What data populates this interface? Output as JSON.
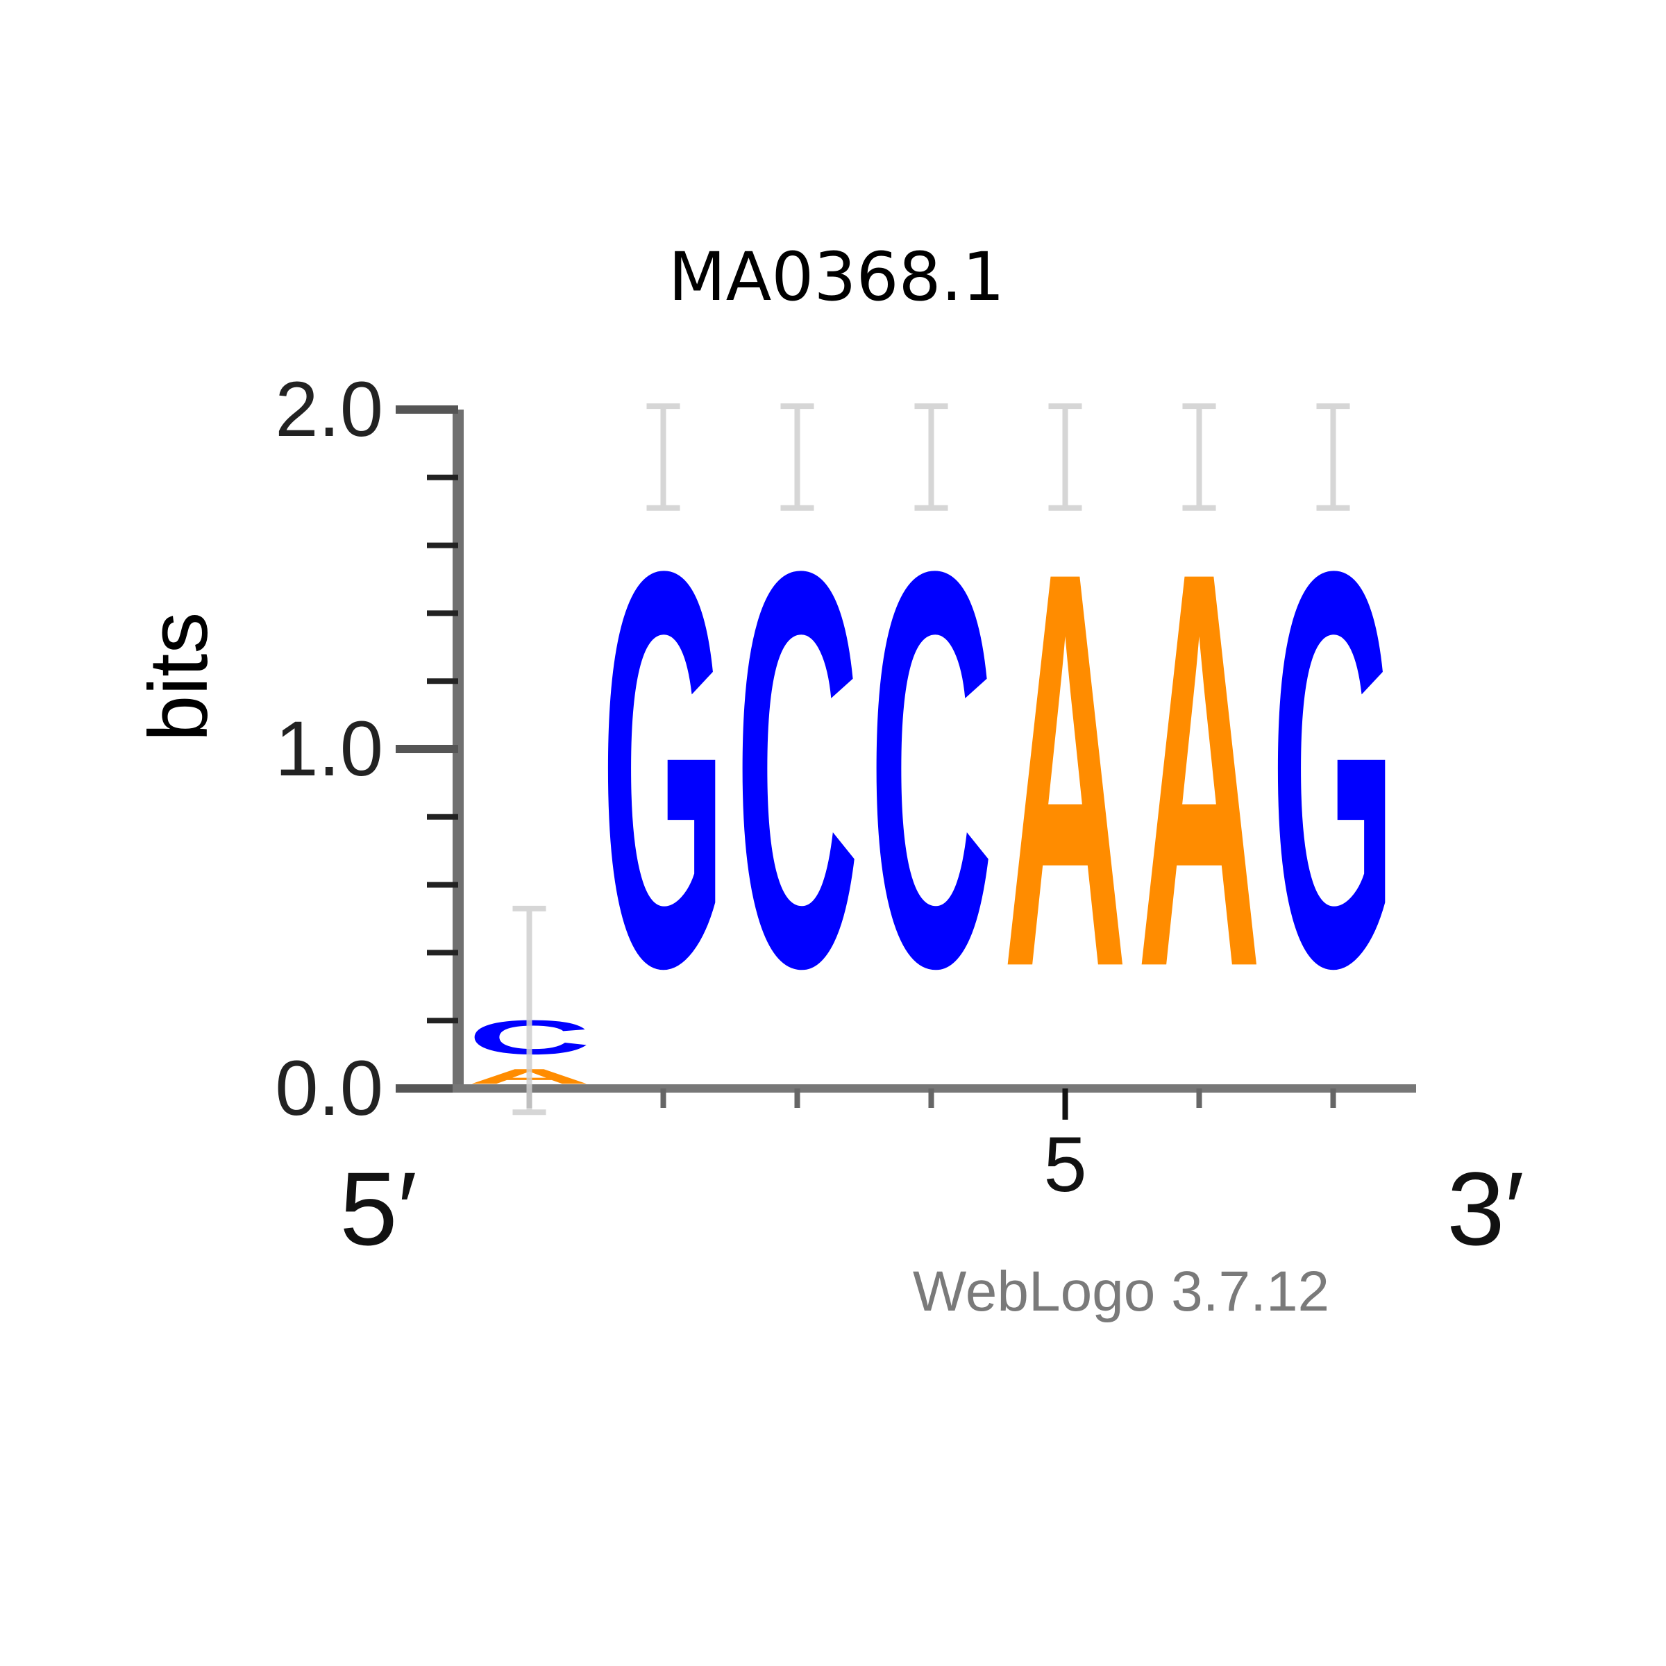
{
  "chart_data": {
    "type": "sequence-logo",
    "title": "MA0368.1",
    "ylabel": "bits",
    "ylim": [
      0,
      2
    ],
    "yticks": [
      "0.0",
      "1.0",
      "2.0"
    ],
    "x_start_label": "5′",
    "x_end_label": "3′",
    "x_labeled_tick": {
      "position": 5,
      "label": "5"
    },
    "watermark": "WebLogo 3.7.12",
    "positions": [
      {
        "position": 1,
        "letters": [
          {
            "letter": "A",
            "bits": 0.07
          },
          {
            "letter": "C",
            "bits": 0.16
          }
        ],
        "error": 0.3
      },
      {
        "position": 2,
        "letters": [
          {
            "letter": "G",
            "bits": 1.86
          }
        ],
        "error": 0.15
      },
      {
        "position": 3,
        "letters": [
          {
            "letter": "C",
            "bits": 1.86
          }
        ],
        "error": 0.15
      },
      {
        "position": 4,
        "letters": [
          {
            "letter": "C",
            "bits": 1.86
          }
        ],
        "error": 0.15
      },
      {
        "position": 5,
        "letters": [
          {
            "letter": "A",
            "bits": 1.86
          }
        ],
        "error": 0.15
      },
      {
        "position": 6,
        "letters": [
          {
            "letter": "A",
            "bits": 1.86
          }
        ],
        "error": 0.15
      },
      {
        "position": 7,
        "letters": [
          {
            "letter": "G",
            "bits": 1.86
          }
        ],
        "error": 0.15
      }
    ],
    "colors": {
      "A": "#ff8c00",
      "C": "#0000ff",
      "G": "#0000ff",
      "T": "#ff0000"
    }
  }
}
